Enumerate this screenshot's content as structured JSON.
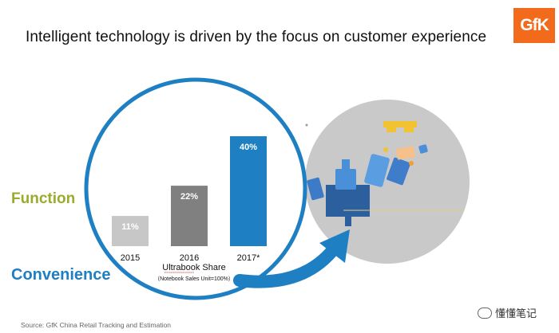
{
  "title": "Intelligent technology is driven by the focus on customer experience",
  "logo_text": "GfK",
  "labels": {
    "function": "Function",
    "convenience": "Convenience"
  },
  "source": "Source: GfK China Retail Tracking and Estimation",
  "watermark": "懂懂笔记",
  "colors": {
    "circle_blue": "#1e7fc3",
    "function_green": "#9bab2c",
    "bar_2015": "#c7c7c7",
    "bar_2016": "#808080",
    "bar_2017": "#1e7fc3",
    "gray_circle": "#c9c9c9",
    "logo_orange": "#f26b1d"
  },
  "chart_data": {
    "type": "bar",
    "categories": [
      "2015",
      "2016",
      "2017*"
    ],
    "values": [
      11,
      22,
      40
    ],
    "value_labels": [
      "11%",
      "22%",
      "40%"
    ],
    "xlabel": "Ultrabook Share",
    "xlabel_note": "（Notebook Sales Unit=100%）",
    "ylim": [
      0,
      40
    ]
  }
}
